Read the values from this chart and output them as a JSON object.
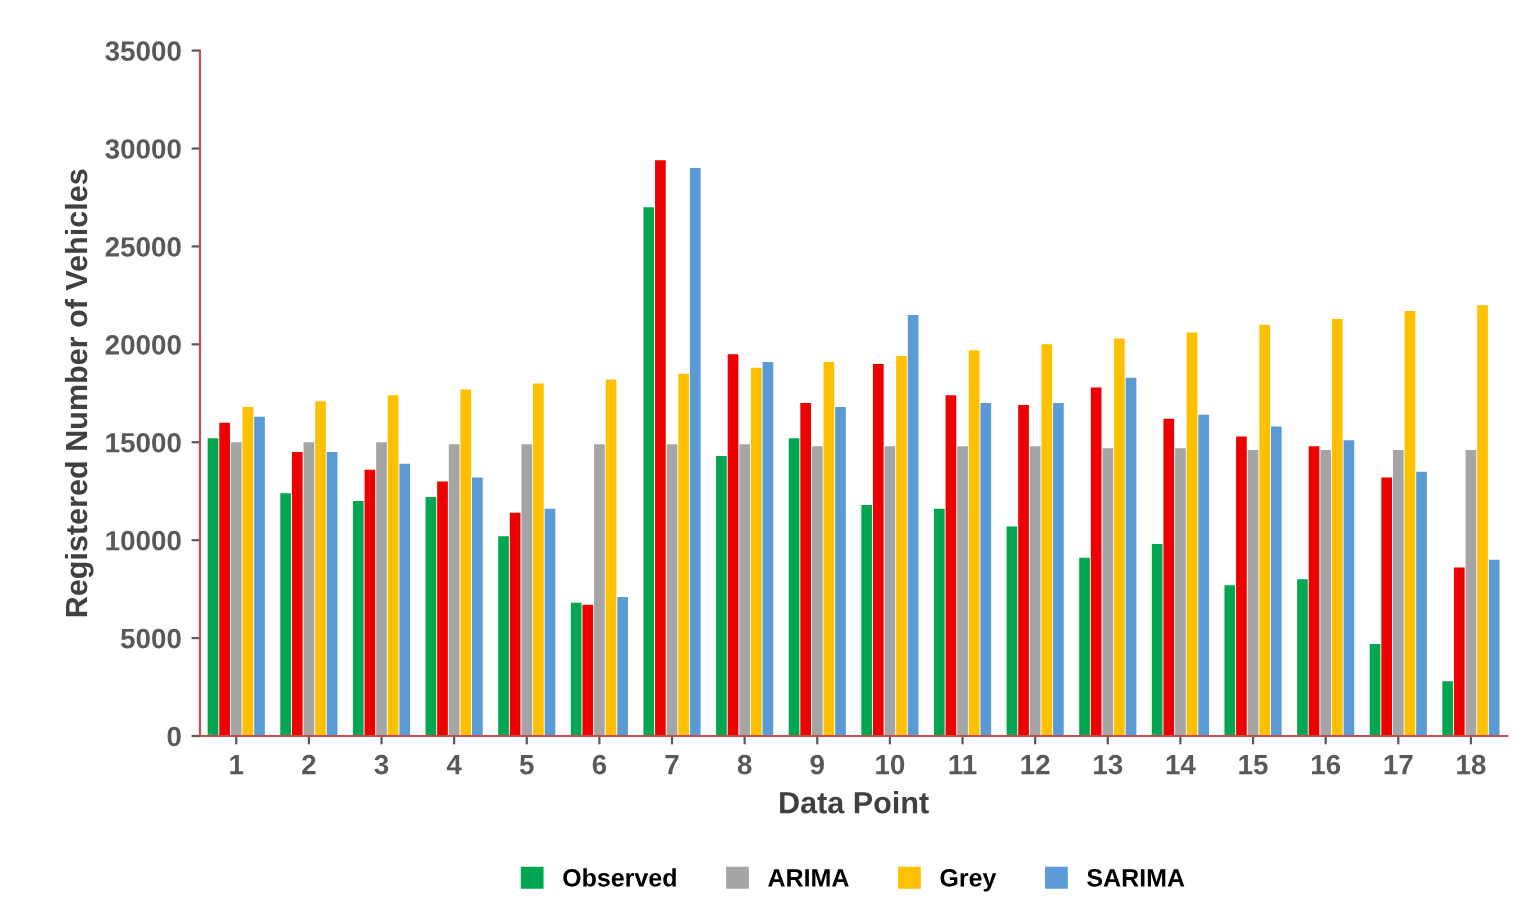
{
  "chart_data": {
    "type": "bar",
    "xlabel": "Data Point",
    "ylabel": "Registered Number of Vehicles",
    "categories": [
      "1",
      "2",
      "3",
      "4",
      "5",
      "6",
      "7",
      "8",
      "9",
      "10",
      "11",
      "12",
      "13",
      "14",
      "15",
      "16",
      "17",
      "18"
    ],
    "series": [
      {
        "name": "Observed",
        "color": "#00a650",
        "values": [
          15200,
          12400,
          12000,
          12200,
          10200,
          6800,
          27000,
          14300,
          15200,
          11800,
          11600,
          10700,
          9100,
          9800,
          7700,
          8000,
          4700,
          2800
        ]
      },
      {
        "color": "#ee0000",
        "values": [
          16000,
          14500,
          13600,
          13000,
          11400,
          6700,
          29400,
          19500,
          17000,
          19000,
          17400,
          16900,
          17800,
          16200,
          15300,
          14800,
          13200,
          8600
        ]
      },
      {
        "name": "ARIMA",
        "color": "#a5a5a5",
        "values": [
          15000,
          15000,
          15000,
          14900,
          14900,
          14900,
          14900,
          14900,
          14800,
          14800,
          14800,
          14800,
          14700,
          14700,
          14600,
          14600,
          14600,
          14600
        ]
      },
      {
        "name": "Grey",
        "color": "#ffc000",
        "values": [
          16800,
          17100,
          17400,
          17700,
          18000,
          18200,
          18500,
          18800,
          19100,
          19400,
          19700,
          20000,
          20300,
          20600,
          21000,
          21300,
          21700,
          22000
        ]
      },
      {
        "name": "SARIMA",
        "color": "#5b9bd5",
        "values": [
          16300,
          14500,
          13900,
          13200,
          11600,
          7100,
          29000,
          19100,
          16800,
          21500,
          17000,
          17000,
          18300,
          16400,
          15800,
          15100,
          13500,
          9000
        ]
      }
    ],
    "ylim": [
      0,
      35000
    ],
    "yticks": [
      0,
      5000,
      10000,
      15000,
      20000,
      25000,
      30000,
      35000
    ],
    "grid": false,
    "legend": "bottom"
  }
}
